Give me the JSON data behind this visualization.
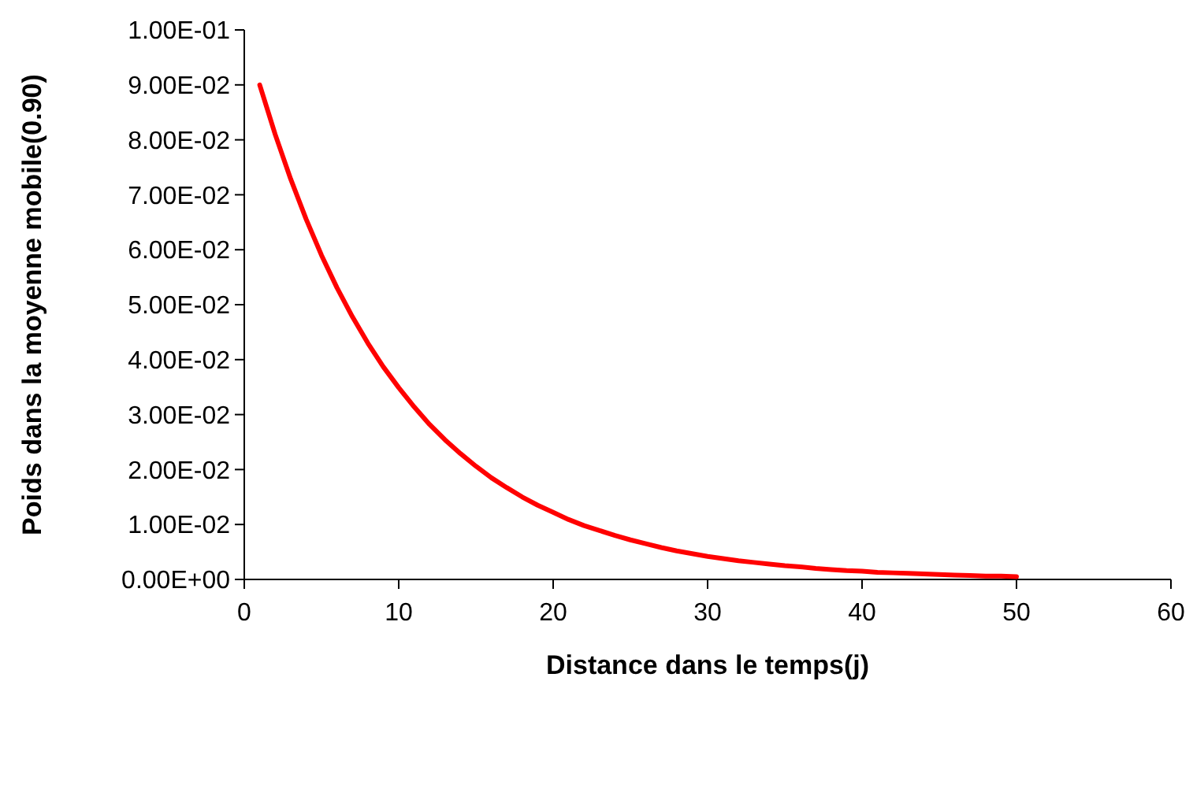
{
  "chart_data": {
    "type": "line",
    "xlabel": "Distance dans le temps(j)",
    "ylabel": "Poids dans la moyenne mobile(0.90)",
    "x": [
      1,
      2,
      3,
      4,
      5,
      6,
      7,
      8,
      9,
      10,
      11,
      12,
      13,
      14,
      15,
      16,
      17,
      18,
      19,
      20,
      21,
      22,
      23,
      24,
      25,
      26,
      27,
      28,
      29,
      30,
      31,
      32,
      33,
      34,
      35,
      36,
      37,
      38,
      39,
      40,
      41,
      42,
      43,
      44,
      45,
      46,
      47,
      48,
      49,
      50
    ],
    "series": [
      {
        "color": "#ff0000",
        "values": [
          0.09,
          0.081,
          0.0729,
          0.0656,
          0.059,
          0.0531,
          0.0478,
          0.043,
          0.0387,
          0.0349,
          0.0314,
          0.0282,
          0.0254,
          0.0229,
          0.0206,
          0.0185,
          0.0167,
          0.015,
          0.0135,
          0.0122,
          0.0109,
          0.0098,
          0.0089,
          0.008,
          0.0072,
          0.0065,
          0.0058,
          0.0052,
          0.0047,
          0.0042,
          0.0038,
          0.0034,
          0.0031,
          0.0028,
          0.0025,
          0.0023,
          0.002,
          0.0018,
          0.0016,
          0.0015,
          0.0013,
          0.0012,
          0.0011,
          0.001,
          0.0009,
          0.0008,
          0.0007,
          0.0006,
          0.0006,
          0.0005
        ]
      }
    ],
    "xlim": [
      0,
      60
    ],
    "xticks": [
      0,
      10,
      20,
      30,
      40,
      50,
      60
    ],
    "ylim": [
      0,
      0.1
    ],
    "yticks": [
      {
        "value": 0,
        "label": "0.00E+00"
      },
      {
        "value": 0.01,
        "label": "1.00E-02"
      },
      {
        "value": 0.02,
        "label": "2.00E-02"
      },
      {
        "value": 0.03,
        "label": "3.00E-02"
      },
      {
        "value": 0.04,
        "label": "4.00E-02"
      },
      {
        "value": 0.05,
        "label": "5.00E-02"
      },
      {
        "value": 0.06,
        "label": "6.00E-02"
      },
      {
        "value": 0.07,
        "label": "7.00E-02"
      },
      {
        "value": 0.08,
        "label": "8.00E-02"
      },
      {
        "value": 0.09,
        "label": "9.00E-02"
      },
      {
        "value": 0.1,
        "label": "1.00E-01"
      }
    ],
    "marker": "none",
    "line_style": "solid"
  }
}
